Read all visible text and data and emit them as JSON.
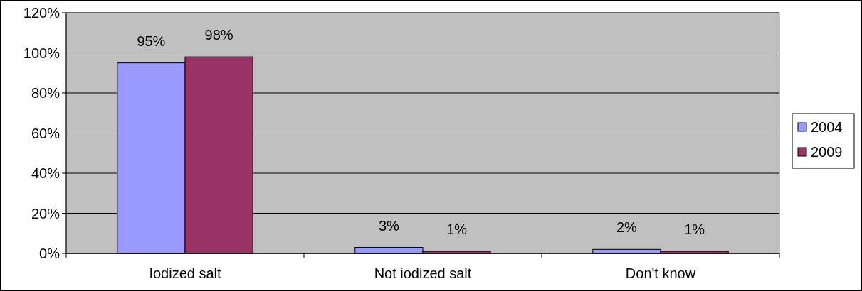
{
  "chart_data": {
    "type": "bar",
    "categories": [
      "Iodized salt",
      "Not iodized salt",
      "Don't know"
    ],
    "series": [
      {
        "name": "2004",
        "color": "#9999ff",
        "values": [
          95,
          3,
          2
        ],
        "value_labels": [
          "95%",
          "3%",
          "2%"
        ]
      },
      {
        "name": "2009",
        "color": "#993366",
        "values": [
          98,
          1,
          1
        ],
        "value_labels": [
          "98%",
          "1%",
          "1%"
        ]
      }
    ],
    "ylim": [
      0,
      120
    ],
    "yticks": [
      {
        "value": 0,
        "label": "0%"
      },
      {
        "value": 20,
        "label": "20%"
      },
      {
        "value": 40,
        "label": "40%"
      },
      {
        "value": 60,
        "label": "60%"
      },
      {
        "value": 80,
        "label": "80%"
      },
      {
        "value": 100,
        "label": "100%"
      },
      {
        "value": 120,
        "label": "120%"
      }
    ],
    "grid": "y",
    "legend": "right"
  }
}
